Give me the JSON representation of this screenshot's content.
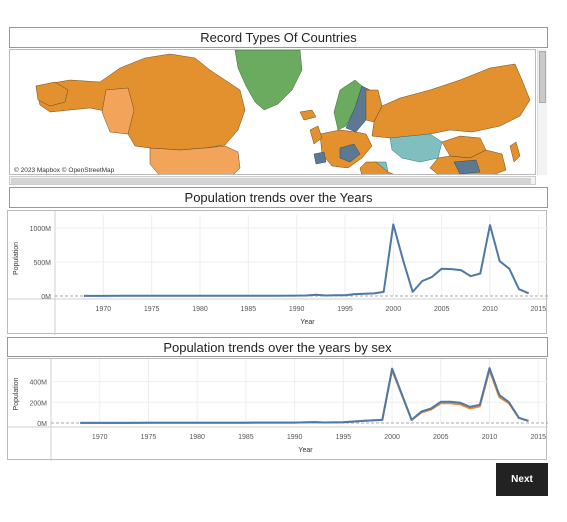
{
  "map": {
    "title": "Record Types Of Countries",
    "attribution": "© 2023 Mapbox © OpenStreetMap",
    "colors": {
      "orange": "#e3902f",
      "light_orange": "#f2a45a",
      "green": "#6aab60",
      "teal": "#7fbfbf",
      "slate": "#5d7891",
      "water": "#ffffff"
    }
  },
  "chart1": {
    "title": "Population trends over the Years"
  },
  "chart2": {
    "title": "Population trends over the years by sex"
  },
  "chart_data": [
    {
      "type": "line",
      "title": "Population trends over the Years",
      "xlabel": "Year",
      "ylabel": "Population",
      "xlim": [
        1965,
        2016
      ],
      "ylim": [
        0,
        1100
      ],
      "yticks": [
        0,
        500,
        1000
      ],
      "ytick_labels": [
        "0M",
        "500M",
        "1000M"
      ],
      "xticks": [
        1970,
        1975,
        1980,
        1985,
        1990,
        1995,
        2000,
        2005,
        2010,
        2015
      ],
      "color": "#4e79a7",
      "series": [
        {
          "x": [
            1968,
            1970,
            1972,
            1975,
            1978,
            1980,
            1982,
            1985,
            1988,
            1990,
            1991,
            1992,
            1993,
            1994,
            1995,
            1996,
            1997,
            1998,
            1999,
            2000,
            2001,
            2002,
            2003,
            2004,
            2005,
            2006,
            2007,
            2008,
            2009,
            2010,
            2011,
            2012,
            2013,
            2014
          ],
          "values": [
            2,
            2,
            3,
            3,
            3,
            4,
            4,
            5,
            5,
            6,
            8,
            18,
            8,
            10,
            12,
            28,
            32,
            38,
            60,
            1050,
            530,
            60,
            220,
            280,
            400,
            395,
            380,
            290,
            330,
            1040,
            510,
            400,
            100,
            40
          ]
        }
      ]
    },
    {
      "type": "line",
      "title": "Population trends over the years by sex",
      "xlabel": "Year",
      "ylabel": "Population",
      "xlim": [
        1965,
        2016
      ],
      "ylim": [
        0,
        560
      ],
      "yticks": [
        0,
        200,
        400
      ],
      "ytick_labels": [
        "0M",
        "200M",
        "400M"
      ],
      "xticks": [
        1970,
        1975,
        1980,
        1985,
        1990,
        1995,
        2000,
        2005,
        2010,
        2015
      ],
      "series": [
        {
          "color": "#f28e2b",
          "x": [
            1968,
            1970,
            1975,
            1980,
            1985,
            1990,
            1992,
            1993,
            1995,
            1997,
            1999,
            2000,
            2002,
            2003,
            2004,
            2005,
            2006,
            2007,
            2008,
            2009,
            2010,
            2011,
            2012,
            2013,
            2014
          ],
          "values": [
            1,
            1,
            2,
            2,
            3,
            4,
            9,
            5,
            8,
            20,
            30,
            510,
            30,
            100,
            130,
            190,
            190,
            180,
            140,
            160,
            510,
            250,
            190,
            50,
            20
          ]
        },
        {
          "color": "#4e79a7",
          "x": [
            1968,
            1970,
            1975,
            1980,
            1985,
            1990,
            1992,
            1993,
            1995,
            1997,
            1999,
            2000,
            2002,
            2003,
            2004,
            2005,
            2006,
            2007,
            2008,
            2009,
            2010,
            2011,
            2012,
            2013,
            2014
          ],
          "values": [
            1,
            1,
            2,
            2,
            3,
            4,
            9,
            5,
            8,
            20,
            30,
            525,
            30,
            110,
            140,
            205,
            205,
            195,
            155,
            175,
            530,
            270,
            200,
            50,
            20
          ]
        }
      ]
    }
  ],
  "next_button": {
    "label": "Next"
  }
}
